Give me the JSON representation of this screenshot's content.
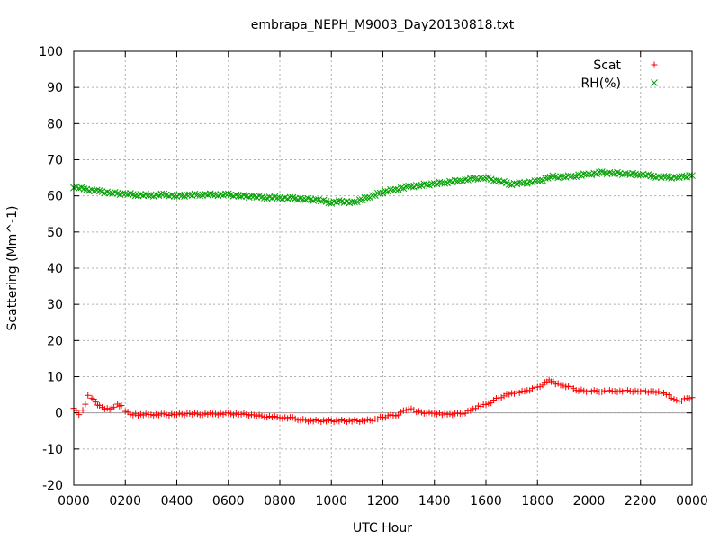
{
  "chart_data": {
    "type": "scatter",
    "title": "embrapa_NEPH_M9003_Day20130818.txt",
    "xlabel": "UTC Hour",
    "ylabel": "Scattering (Mm^-1)",
    "xlim": [
      0,
      24
    ],
    "ylim": [
      -20,
      100
    ],
    "grid": true,
    "legend_position": "top-right",
    "x_tick_labels": [
      "0000",
      "0200",
      "0400",
      "0600",
      "0800",
      "1000",
      "1200",
      "1400",
      "1600",
      "1800",
      "2000",
      "2200",
      "0000"
    ],
    "y_tick_labels": [
      "-20",
      "-10",
      "0",
      "10",
      "20",
      "30",
      "40",
      "50",
      "60",
      "70",
      "80",
      "90",
      "100"
    ],
    "zero_line": true,
    "series": [
      {
        "name": "Scat",
        "marker": "+",
        "color": "#ff0000",
        "points": [
          [
            0.0,
            1.5
          ],
          [
            0.2,
            -0.5
          ],
          [
            0.35,
            0.5
          ],
          [
            0.45,
            2.5
          ],
          [
            0.55,
            4.7
          ],
          [
            0.7,
            4.3
          ],
          [
            0.85,
            3.0
          ],
          [
            1.0,
            1.8
          ],
          [
            1.2,
            1.2
          ],
          [
            1.4,
            0.8
          ],
          [
            1.55,
            1.8
          ],
          [
            1.7,
            2.4
          ],
          [
            1.85,
            1.8
          ],
          [
            2.0,
            0.5
          ],
          [
            2.2,
            -0.5
          ],
          [
            2.5,
            -0.5
          ],
          [
            3.0,
            -0.5
          ],
          [
            3.5,
            -0.5
          ],
          [
            4.0,
            -0.4
          ],
          [
            4.5,
            -0.3
          ],
          [
            5.0,
            -0.3
          ],
          [
            5.5,
            -0.3
          ],
          [
            6.0,
            -0.3
          ],
          [
            6.5,
            -0.3
          ],
          [
            7.0,
            -0.7
          ],
          [
            7.5,
            -1.0
          ],
          [
            8.0,
            -1.3
          ],
          [
            8.5,
            -1.5
          ],
          [
            8.8,
            -1.9
          ],
          [
            9.2,
            -2.2
          ],
          [
            9.6,
            -2.2
          ],
          [
            10.0,
            -2.2
          ],
          [
            10.4,
            -2.2
          ],
          [
            10.8,
            -2.2
          ],
          [
            11.2,
            -2.2
          ],
          [
            11.6,
            -2.0
          ],
          [
            12.0,
            -1.2
          ],
          [
            12.3,
            -0.8
          ],
          [
            12.6,
            -0.5
          ],
          [
            12.8,
            0.5
          ],
          [
            13.0,
            1.2
          ],
          [
            13.2,
            0.8
          ],
          [
            13.4,
            0.2
          ],
          [
            13.7,
            0.0
          ],
          [
            14.0,
            -0.2
          ],
          [
            14.3,
            -0.3
          ],
          [
            14.6,
            -0.3
          ],
          [
            14.9,
            -0.3
          ],
          [
            15.2,
            0.0
          ],
          [
            15.5,
            1.0
          ],
          [
            15.8,
            2.0
          ],
          [
            16.1,
            2.6
          ],
          [
            16.4,
            3.8
          ],
          [
            16.7,
            4.8
          ],
          [
            17.0,
            5.3
          ],
          [
            17.3,
            5.8
          ],
          [
            17.6,
            6.2
          ],
          [
            17.9,
            6.8
          ],
          [
            18.2,
            7.8
          ],
          [
            18.45,
            9.0
          ],
          [
            18.7,
            8.2
          ],
          [
            19.0,
            7.6
          ],
          [
            19.3,
            7.0
          ],
          [
            19.6,
            6.2
          ],
          [
            20.0,
            6.0
          ],
          [
            20.5,
            6.0
          ],
          [
            21.0,
            6.0
          ],
          [
            21.5,
            6.0
          ],
          [
            22.0,
            6.0
          ],
          [
            22.5,
            5.8
          ],
          [
            22.8,
            5.6
          ],
          [
            23.1,
            5.0
          ],
          [
            23.3,
            3.5
          ],
          [
            23.6,
            3.4
          ],
          [
            23.8,
            3.9
          ],
          [
            24.0,
            4.2
          ]
        ]
      },
      {
        "name": "RH(%)",
        "marker": "x",
        "color": "#00a000",
        "points": [
          [
            0.0,
            62.5
          ],
          [
            0.5,
            61.8
          ],
          [
            1.0,
            61.2
          ],
          [
            1.5,
            60.8
          ],
          [
            2.0,
            60.5
          ],
          [
            2.5,
            60.3
          ],
          [
            3.0,
            60.1
          ],
          [
            3.5,
            60.3
          ],
          [
            4.0,
            60.0
          ],
          [
            4.5,
            60.2
          ],
          [
            5.0,
            60.4
          ],
          [
            5.5,
            60.3
          ],
          [
            6.0,
            60.3
          ],
          [
            6.5,
            60.0
          ],
          [
            7.0,
            59.8
          ],
          [
            7.5,
            59.6
          ],
          [
            8.0,
            59.4
          ],
          [
            8.5,
            59.3
          ],
          [
            9.0,
            59.1
          ],
          [
            9.5,
            58.8
          ],
          [
            10.0,
            58.2
          ],
          [
            10.4,
            58.5
          ],
          [
            10.8,
            58.1
          ],
          [
            11.2,
            59.0
          ],
          [
            11.6,
            60.0
          ],
          [
            12.0,
            61.0
          ],
          [
            12.5,
            61.8
          ],
          [
            13.0,
            62.5
          ],
          [
            13.5,
            63.0
          ],
          [
            14.0,
            63.3
          ],
          [
            14.5,
            63.8
          ],
          [
            15.0,
            64.2
          ],
          [
            15.5,
            64.7
          ],
          [
            16.0,
            65.0
          ],
          [
            16.5,
            64.0
          ],
          [
            17.0,
            63.3
          ],
          [
            17.5,
            63.6
          ],
          [
            18.0,
            64.0
          ],
          [
            18.5,
            65.3
          ],
          [
            19.0,
            65.2
          ],
          [
            19.5,
            65.6
          ],
          [
            20.0,
            66.0
          ],
          [
            20.5,
            66.4
          ],
          [
            21.0,
            66.3
          ],
          [
            21.5,
            66.0
          ],
          [
            22.0,
            66.0
          ],
          [
            22.5,
            65.4
          ],
          [
            23.0,
            65.1
          ],
          [
            23.5,
            65.2
          ],
          [
            24.0,
            65.6
          ]
        ]
      }
    ]
  }
}
